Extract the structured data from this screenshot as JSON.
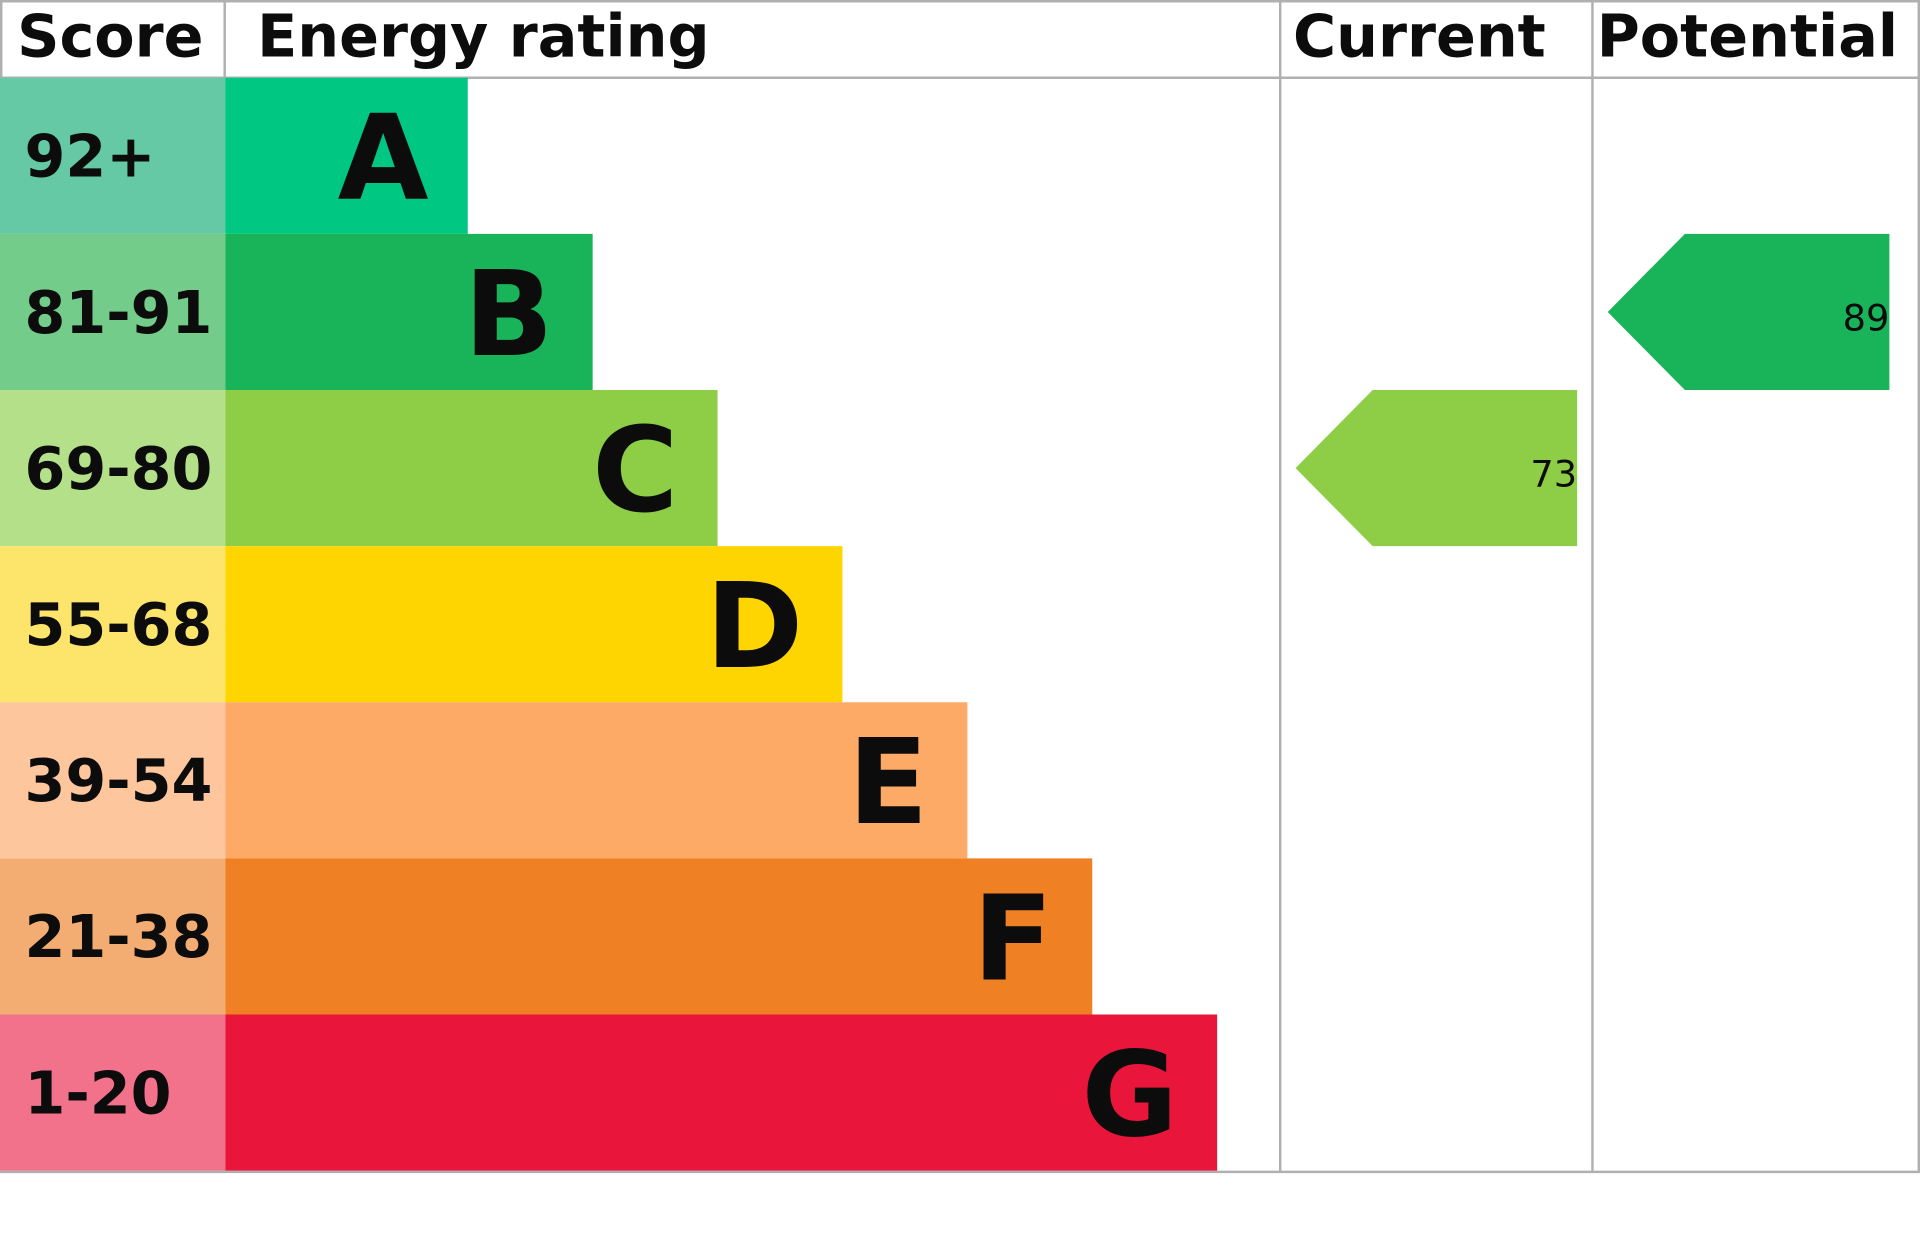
{
  "header": {
    "score": "Score",
    "rating": "Energy rating",
    "current": "Current",
    "potential": "Potential"
  },
  "bands": [
    {
      "score": "92+",
      "letter": "A"
    },
    {
      "score": "81-91",
      "letter": "B"
    },
    {
      "score": "69-80",
      "letter": "C"
    },
    {
      "score": "55-68",
      "letter": "D"
    },
    {
      "score": "39-54",
      "letter": "E"
    },
    {
      "score": "21-38",
      "letter": "F"
    },
    {
      "score": "1-20",
      "letter": "G"
    }
  ],
  "current": 73,
  "potential": 89
}
